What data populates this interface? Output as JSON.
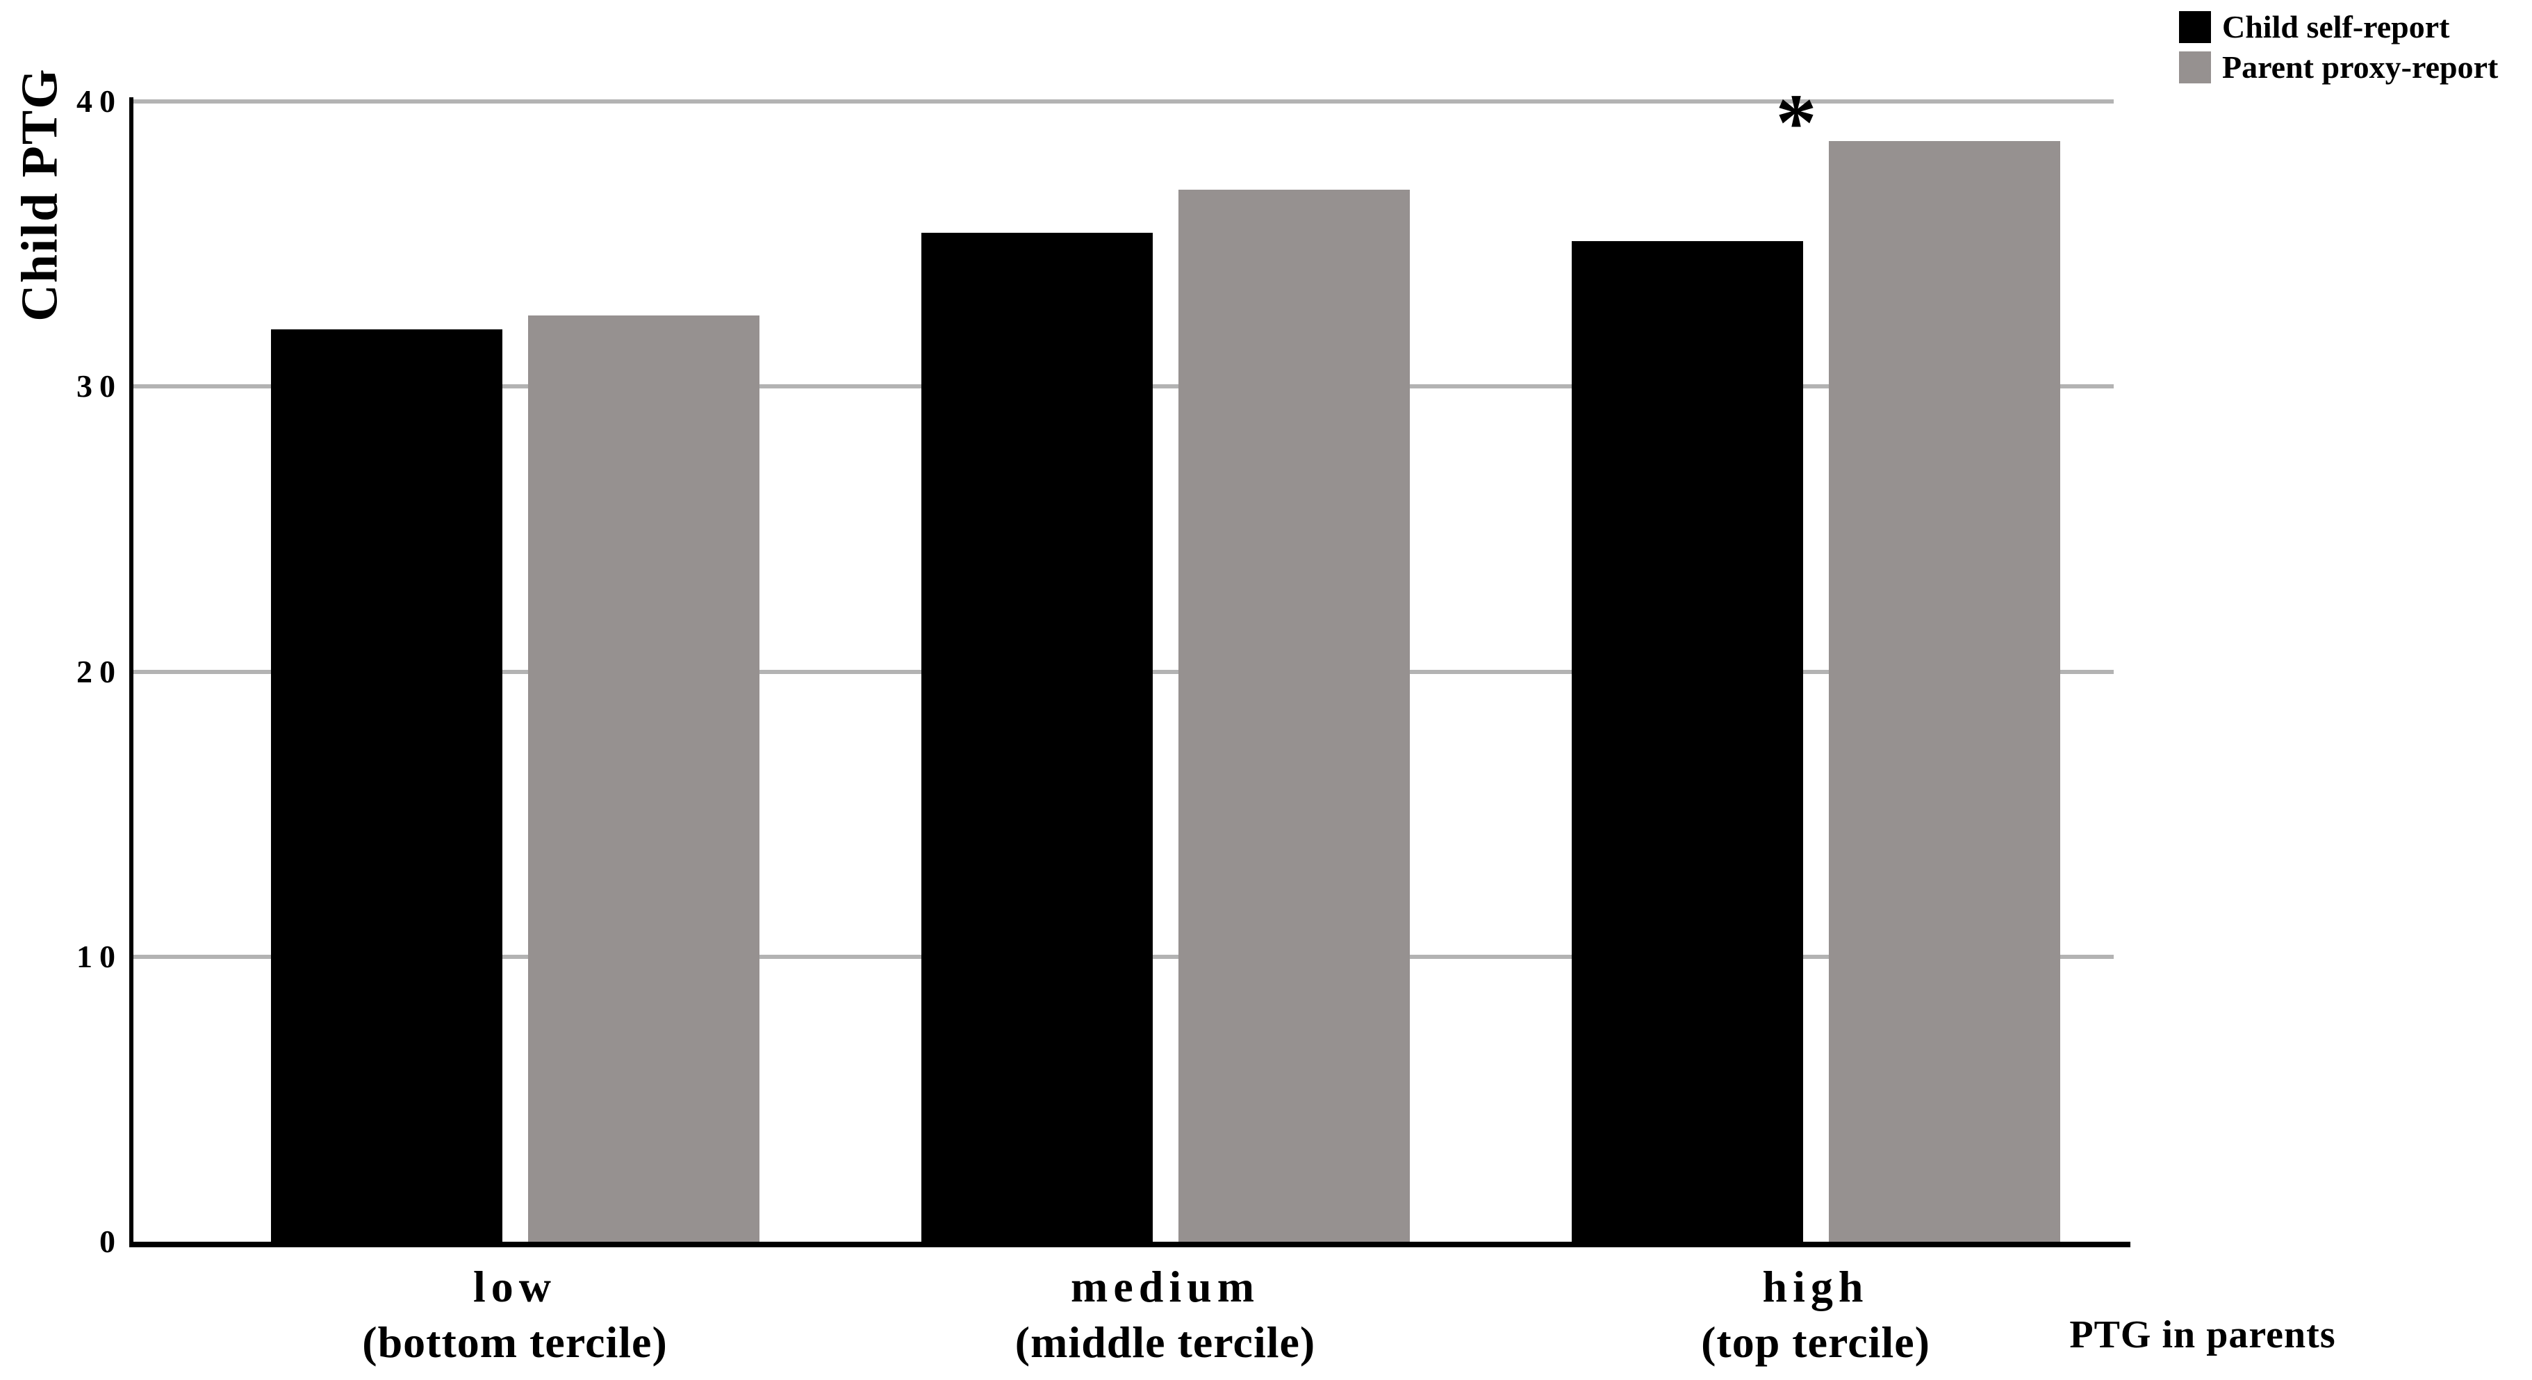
{
  "figure": {
    "type": "grouped-bar-chart",
    "background": "#ffffff"
  },
  "chart_data": {
    "type": "bar",
    "title": "",
    "ylabel": "Child PTG",
    "xlabel": "PTG in parents",
    "ylim": [
      0,
      40
    ],
    "yticks": [
      0,
      10,
      20,
      30,
      40
    ],
    "grid": "horizontal",
    "legend_position": "top-right",
    "categories": [
      {
        "key": "low",
        "line1": "low",
        "line2": "(bottom tercile)"
      },
      {
        "key": "medium",
        "line1": "medium",
        "line2": "(middle tercile)"
      },
      {
        "key": "high",
        "line1": "high",
        "line2": "(top tercile)"
      }
    ],
    "series": [
      {
        "name": "Child self-report",
        "color": "#000000",
        "values": [
          32.0,
          35.4,
          35.1
        ]
      },
      {
        "name": "Parent proxy-report",
        "color": "#969190",
        "values": [
          32.5,
          36.9,
          38.6
        ]
      }
    ],
    "annotation": {
      "text": "*",
      "target_category": "high",
      "target_series": "Parent proxy-report"
    },
    "colors": {
      "gridline": "#b3b3b3",
      "axis": "#000000"
    }
  }
}
